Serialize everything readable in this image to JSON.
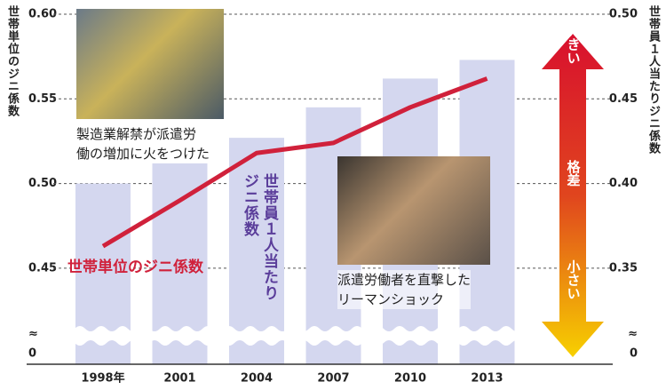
{
  "chart_data": {
    "type": "bar-line",
    "categories": [
      "1998年",
      "2001",
      "2004",
      "2007",
      "2010",
      "2013"
    ],
    "series": [
      {
        "name": "世帯員１人当たりジニ係数",
        "type": "bar",
        "axis": "y2",
        "color": "#d4d7ef",
        "values": [
          0.4,
          0.412,
          0.427,
          0.445,
          0.462,
          0.473
        ]
      },
      {
        "name": "世帯単位のジニ係数",
        "type": "line",
        "axis": "y",
        "color": "#d0213b",
        "values": [
          0.463,
          0.49,
          0.518,
          0.524,
          0.545,
          0.562
        ]
      }
    ],
    "ylabel": "世帯単位のジニ係数",
    "y2label": "世帯員１人当たりジニ係数",
    "ylim": [
      0,
      0.6
    ],
    "ybreak": [
      0,
      0.43
    ],
    "yticks": [
      0,
      0.45,
      {
        "value": 0.5,
        "label": "0.50"
      },
      0.55,
      {
        "value": 0.6,
        "label": "0.60"
      }
    ],
    "y2lim": [
      0,
      0.5
    ],
    "y2break": [
      0,
      0.33
    ],
    "y2ticks": [
      0,
      0.35,
      {
        "value": 0.4,
        "label": "0.40"
      },
      0.45,
      {
        "value": 0.5,
        "label": "0.50"
      }
    ],
    "break_symbol": "≈",
    "grid": true,
    "annotations": {
      "photo1": [
        "製造業解禁が派遣労",
        "働の増加に火をつけた"
      ],
      "photo2": [
        "派遣労働者を直撃した",
        "リーマンショック"
      ],
      "arrow": {
        "top": "大きい",
        "middle": "格差",
        "bottom": "小さい"
      }
    }
  }
}
